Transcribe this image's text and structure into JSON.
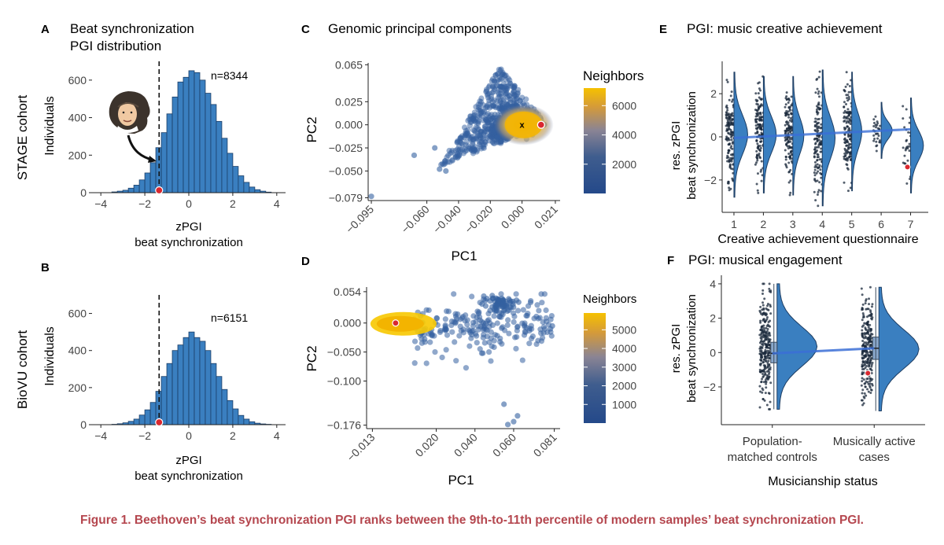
{
  "figure": {
    "caption": "Figure 1. Beethoven’s beat synchronization PGI ranks between the 9th-to-11th percentile of modern samples’ beat synchronization PGI.",
    "colors": {
      "bar": "#3a7fc0",
      "bar_edge": "#1a3d66",
      "marker": "#d9282f",
      "violin": "#3a7fc0",
      "trend": "#3b6fd6",
      "caption": "#b5474f",
      "scale_low": "#24498a",
      "scale_mid": "#8a8494",
      "scale_high": "#f6c100"
    }
  },
  "chart_data": [
    {
      "id": "A",
      "type": "bar",
      "panel_label": "A",
      "title": "Beat synchronization",
      "subtitle": "PGI distribution",
      "row_label": "STAGE cohort",
      "xlabel": "zPGI",
      "xlabel2": "beat synchronization",
      "ylabel": "Individuals",
      "n_label": "n=8344",
      "xlim": [
        -4.4,
        4.4
      ],
      "ylim": [
        0,
        700
      ],
      "xticks": [
        "-4",
        "-2",
        "0",
        "2",
        "4"
      ],
      "yticks": [
        "0",
        "200",
        "400",
        "600"
      ],
      "bin_width": 0.25,
      "bin_starts": [
        -3.5,
        -3.25,
        -3,
        -2.75,
        -2.5,
        -2.25,
        -2,
        -1.75,
        -1.5,
        -1.25,
        -1,
        -0.75,
        -0.5,
        -0.25,
        0,
        0.25,
        0.5,
        0.75,
        1,
        1.25,
        1.5,
        1.75,
        2,
        2.25,
        2.5,
        2.75,
        3,
        3.25,
        3.5
      ],
      "counts": [
        4,
        8,
        13,
        24,
        40,
        68,
        105,
        160,
        240,
        320,
        420,
        510,
        590,
        615,
        650,
        640,
        600,
        530,
        470,
        380,
        290,
        210,
        140,
        90,
        55,
        30,
        16,
        8,
        3
      ],
      "beethoven_zpgi": -1.35,
      "image_label": "Beethoven"
    },
    {
      "id": "B",
      "type": "bar",
      "panel_label": "B",
      "row_label": "BioVU cohort",
      "xlabel": "zPGI",
      "xlabel2": "beat synchronization",
      "ylabel": "Individuals",
      "n_label": "n=6151",
      "xlim": [
        -4.4,
        4.4
      ],
      "ylim": [
        0,
        700
      ],
      "xticks": [
        "-4",
        "-2",
        "0",
        "2",
        "4"
      ],
      "yticks": [
        "0",
        "200",
        "400",
        "600"
      ],
      "bin_width": 0.25,
      "bin_starts": [
        -3.5,
        -3.25,
        -3,
        -2.75,
        -2.5,
        -2.25,
        -2,
        -1.75,
        -1.5,
        -1.25,
        -1,
        -0.75,
        -0.5,
        -0.25,
        0,
        0.25,
        0.5,
        0.75,
        1,
        1.25,
        1.5,
        1.75,
        2,
        2.25,
        2.5,
        2.75,
        3,
        3.25,
        3.5
      ],
      "counts": [
        2,
        5,
        10,
        18,
        30,
        52,
        80,
        120,
        180,
        260,
        330,
        400,
        430,
        470,
        500,
        470,
        450,
        400,
        330,
        260,
        190,
        130,
        85,
        50,
        30,
        16,
        8,
        4,
        2
      ],
      "beethoven_zpgi": -1.35
    },
    {
      "id": "C",
      "type": "scatter",
      "panel_label": "C",
      "title": "Genomic principal components",
      "xlabel": "PC1",
      "ylabel": "PC2",
      "xlim": [
        -0.097,
        0.024
      ],
      "ylim": [
        -0.082,
        0.067
      ],
      "xticks": [
        -0.095,
        -0.06,
        -0.04,
        -0.02,
        0.0,
        0.021
      ],
      "xtick_labels": [
        "−0.095",
        "−0.060",
        "−0.040",
        "−0.020",
        "0.000",
        "0.021"
      ],
      "yticks": [
        0.065,
        0.025,
        0.0,
        -0.025,
        -0.05,
        -0.079
      ],
      "ytick_labels": [
        "0.065",
        "0.025",
        "0.000",
        "−0.025",
        "−0.050",
        "−0.079"
      ],
      "legend_title": "Neighbors",
      "color_range": [
        0,
        7200
      ],
      "colorbar_ticks": [
        "6000",
        "4000",
        "2000"
      ],
      "colorbar_values": [
        6000,
        4000,
        2000
      ],
      "cluster_centroid": [
        0.0,
        0.0
      ],
      "cluster_marker": "x",
      "beethoven_point": [
        0.012,
        0.0
      ],
      "outliers": [
        [
          -0.095,
          -0.0775
        ],
        [
          -0.068,
          -0.033
        ],
        [
          -0.052,
          -0.048
        ],
        [
          -0.055,
          -0.025
        ],
        [
          -0.048,
          -0.05
        ]
      ]
    },
    {
      "id": "D",
      "type": "scatter",
      "panel_label": "D",
      "xlabel": "PC1",
      "ylabel": "PC2",
      "xlim": [
        -0.016,
        0.084
      ],
      "ylim": [
        -0.182,
        0.062
      ],
      "xticks": [
        -0.013,
        0.02,
        0.04,
        0.06,
        0.081
      ],
      "xtick_labels": [
        "−0.013",
        "0.020",
        "0.040",
        "0.060",
        "0.081"
      ],
      "yticks": [
        0.054,
        0.0,
        -0.05,
        -0.1,
        -0.176
      ],
      "ytick_labels": [
        "0.054",
        "0.000",
        "−0.050",
        "−0.100",
        "−0.176"
      ],
      "legend_title": "Neighbors",
      "color_range": [
        0,
        5900
      ],
      "colorbar_ticks": [
        "5000",
        "4000",
        "3000",
        "2000",
        "1000"
      ],
      "colorbar_values": [
        5000,
        4000,
        3000,
        2000,
        1000
      ],
      "beethoven_point": [
        -0.001,
        0.0
      ],
      "outliers": [
        [
          0.055,
          -0.14
        ],
        [
          0.06,
          -0.17
        ],
        [
          0.062,
          -0.16
        ],
        [
          0.057,
          -0.175
        ],
        [
          0.08,
          -0.005
        ],
        [
          0.079,
          -0.01
        ]
      ]
    },
    {
      "id": "E",
      "type": "violin",
      "panel_label": "E",
      "title": "PGI: music creative achievement",
      "xlabel": "Creative achievement questionnaire",
      "ylabel": "res. zPGI",
      "ylabel2": "beat synchronization",
      "categories": [
        "1",
        "2",
        "3",
        "4",
        "5",
        "6",
        "7"
      ],
      "xlim": [
        0.6,
        7.6
      ],
      "ylim": [
        -3.5,
        3.5
      ],
      "yticks": [
        "2",
        "0",
        "-2"
      ],
      "ytick_values": [
        2,
        0,
        -2
      ],
      "ranges": [
        [
          -2.8,
          3.0
        ],
        [
          -2.6,
          2.8
        ],
        [
          -2.7,
          2.8
        ],
        [
          -3.2,
          3.1
        ],
        [
          -2.5,
          3.0
        ],
        [
          -1.0,
          1.6
        ],
        [
          -2.6,
          1.8
        ]
      ],
      "density_widths": [
        0.75,
        0.7,
        0.6,
        0.7,
        0.55,
        0.6,
        0.7
      ],
      "trend": [
        [
          1,
          -0.05
        ],
        [
          7,
          0.35
        ]
      ],
      "beethoven_point": [
        7,
        -1.4
      ]
    },
    {
      "id": "F",
      "type": "violin",
      "panel_label": "F",
      "title": "PGI: musical engagement",
      "xlabel": "Musicianship status",
      "ylabel": "res. zPGI",
      "ylabel2": "beat synchronization",
      "categories": [
        "Population-|matched controls",
        "Musically active|cases"
      ],
      "xlim": [
        0.5,
        2.5
      ],
      "ylim": [
        -4.2,
        4.5
      ],
      "yticks": [
        "4",
        "2",
        "0",
        "-2"
      ],
      "ytick_values": [
        4,
        2,
        0,
        -2
      ],
      "ranges": [
        [
          -3.3,
          4.0
        ],
        [
          -3.4,
          3.8
        ]
      ],
      "medians": [
        -0.05,
        0.25
      ],
      "boxes": [
        [
          -0.6,
          0.6
        ],
        [
          -0.4,
          0.9
        ]
      ],
      "trend": [
        [
          1,
          -0.05
        ],
        [
          2,
          0.25
        ]
      ],
      "beethoven_point": [
        2,
        -1.2
      ]
    }
  ]
}
